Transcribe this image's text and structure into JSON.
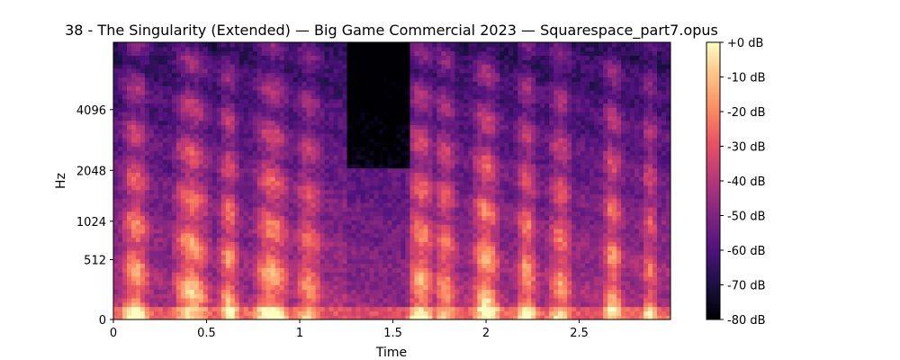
{
  "chart_data": {
    "type": "heatmap",
    "title": "38 - The Singularity (Extended) — Big Game Commercial 2023 — Squarespace_part7.opus",
    "xlabel": "Time",
    "ylabel": "Hz",
    "xlim": [
      0,
      2.99
    ],
    "x_ticks": [
      "0",
      "0.5",
      "1",
      "1.5",
      "2",
      "2.5"
    ],
    "x_tick_values": [
      0,
      0.5,
      1,
      1.5,
      2,
      2.5
    ],
    "y_scale": "mel",
    "ylim": [
      0,
      8192
    ],
    "y_ticks": [
      "0",
      "512",
      "1024",
      "2048",
      "4096"
    ],
    "y_tick_values": [
      0,
      512,
      1024,
      2048,
      4096
    ],
    "colormap": "magma",
    "colorbar": {
      "ticks": [
        "+0 dB",
        "-10 dB",
        "-20 dB",
        "-30 dB",
        "-40 dB",
        "-50 dB",
        "-60 dB",
        "-70 dB",
        "-80 dB"
      ],
      "range": [
        -80,
        0
      ]
    },
    "grid": false
  }
}
